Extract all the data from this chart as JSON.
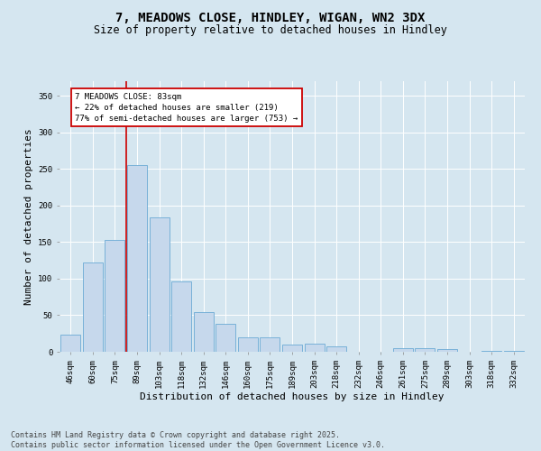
{
  "title1": "7, MEADOWS CLOSE, HINDLEY, WIGAN, WN2 3DX",
  "title2": "Size of property relative to detached houses in Hindley",
  "xlabel": "Distribution of detached houses by size in Hindley",
  "ylabel": "Number of detached properties",
  "categories": [
    "46sqm",
    "60sqm",
    "75sqm",
    "89sqm",
    "103sqm",
    "118sqm",
    "132sqm",
    "146sqm",
    "160sqm",
    "175sqm",
    "189sqm",
    "203sqm",
    "218sqm",
    "232sqm",
    "246sqm",
    "261sqm",
    "275sqm",
    "289sqm",
    "303sqm",
    "318sqm",
    "332sqm"
  ],
  "values": [
    23,
    122,
    153,
    255,
    184,
    96,
    54,
    38,
    20,
    20,
    10,
    11,
    7,
    0,
    0,
    5,
    5,
    4,
    0,
    1,
    1
  ],
  "bar_color": "#c6d8ec",
  "bar_edge_color": "#6aaad4",
  "vline_color": "#cc0000",
  "vline_x": 2.5,
  "annotation_text": "7 MEADOWS CLOSE: 83sqm\n← 22% of detached houses are smaller (219)\n77% of semi-detached houses are larger (753) →",
  "annotation_box_facecolor": "#ffffff",
  "annotation_box_edgecolor": "#cc0000",
  "ylim": [
    0,
    370
  ],
  "yticks": [
    0,
    50,
    100,
    150,
    200,
    250,
    300,
    350
  ],
  "background_color": "#d5e6f0",
  "grid_color": "#ffffff",
  "footer_line1": "Contains HM Land Registry data © Crown copyright and database right 2025.",
  "footer_line2": "Contains public sector information licensed under the Open Government Licence v3.0.",
  "title_fontsize": 10,
  "subtitle_fontsize": 8.5,
  "tick_fontsize": 6.5,
  "xlabel_fontsize": 8,
  "ylabel_fontsize": 8,
  "annot_fontsize": 6.5,
  "footer_fontsize": 6
}
